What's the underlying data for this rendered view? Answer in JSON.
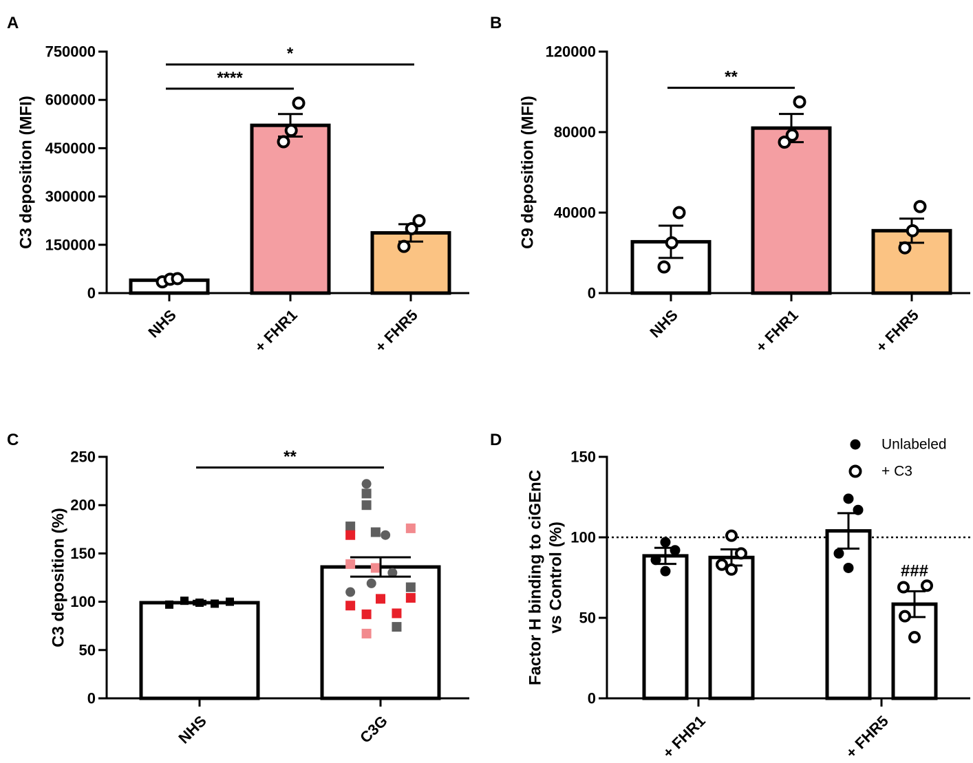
{
  "colors": {
    "axis": "#000000",
    "nhs_bar": "#ffffff",
    "fhr1_bar": "#f49ea2",
    "fhr5_bar": "#fbc383",
    "c3g_red": "#e8202a",
    "c3g_pink": "#f28a8e",
    "c3g_gray": "#5f5f5f"
  },
  "chart_data": [
    {
      "panel": "A",
      "type": "bar",
      "ylabel": "C3 deposition (MFI)",
      "ylim": [
        0,
        750000
      ],
      "yticks": [
        "0",
        "150000",
        "300000",
        "450000",
        "600000",
        "750000"
      ],
      "ytick_values": [
        0,
        150000,
        300000,
        450000,
        600000,
        750000
      ],
      "categories": [
        "NHS",
        "+ FHR1",
        "+ FHR5"
      ],
      "values": [
        40000,
        521000,
        187000
      ],
      "sem": [
        4000,
        35000,
        27000
      ],
      "points": [
        [
          35000,
          45000,
          43000
        ],
        [
          470000,
          505000,
          590000
        ],
        [
          145000,
          200000,
          225000
        ]
      ],
      "bar_colors": [
        "#ffffff",
        "#f49ea2",
        "#fbc383"
      ],
      "significance": [
        {
          "from": 0,
          "to": 1,
          "label": "****",
          "level": 635000
        },
        {
          "from": 0,
          "to": 2,
          "label": "*",
          "level": 710000
        }
      ]
    },
    {
      "panel": "B",
      "type": "bar",
      "ylabel": "C9 deposition (MFI)",
      "ylim": [
        0,
        120000
      ],
      "yticks": [
        "0",
        "40000",
        "80000",
        "120000"
      ],
      "ytick_values": [
        0,
        40000,
        80000,
        120000
      ],
      "categories": [
        "NHS",
        "+ FHR1",
        "+ FHR5"
      ],
      "values": [
        25500,
        82000,
        31000
      ],
      "sem": [
        8000,
        7000,
        6000
      ],
      "points": [
        [
          13000,
          25000,
          40000
        ],
        [
          75000,
          78500,
          95000
        ],
        [
          22500,
          31000,
          43000
        ]
      ],
      "bar_colors": [
        "#ffffff",
        "#f49ea2",
        "#fbc383"
      ],
      "significance": [
        {
          "from": 0,
          "to": 1,
          "label": "**",
          "level": 102000
        }
      ]
    },
    {
      "panel": "C",
      "type": "bar",
      "ylabel": "C3 deposition (%)",
      "ylim": [
        0,
        250
      ],
      "yticks": [
        "0",
        "50",
        "100",
        "150",
        "200",
        "250"
      ],
      "ytick_values": [
        0,
        50,
        100,
        150,
        200,
        250
      ],
      "categories": [
        "NHS",
        "C3G"
      ],
      "values": [
        99,
        136
      ],
      "sem": [
        2,
        10
      ],
      "nhs_points": [
        97,
        101,
        99,
        98,
        100
      ],
      "c3g_points": [
        {
          "y": 222,
          "shape": "circle",
          "color": "gray",
          "dx": -0.2
        },
        {
          "y": 212,
          "shape": "square",
          "color": "gray",
          "dx": -0.2
        },
        {
          "y": 200,
          "shape": "square",
          "color": "gray",
          "dx": -0.2
        },
        {
          "y": 178,
          "shape": "square",
          "color": "gray",
          "dx": -0.43
        },
        {
          "y": 172,
          "shape": "square",
          "color": "gray",
          "dx": -0.07
        },
        {
          "y": 169,
          "shape": "circle",
          "color": "gray",
          "dx": 0.07
        },
        {
          "y": 176,
          "shape": "square",
          "color": "pink",
          "dx": 0.43
        },
        {
          "y": 169,
          "shape": "square",
          "color": "red",
          "dx": -0.43
        },
        {
          "y": 139,
          "shape": "square",
          "color": "pink",
          "dx": -0.43
        },
        {
          "y": 135,
          "shape": "square",
          "color": "pink",
          "dx": -0.07
        },
        {
          "y": 130,
          "shape": "circle",
          "color": "gray",
          "dx": 0.17
        },
        {
          "y": 119,
          "shape": "circle",
          "color": "gray",
          "dx": -0.13
        },
        {
          "y": 115,
          "shape": "square",
          "color": "gray",
          "dx": 0.43
        },
        {
          "y": 110,
          "shape": "circle",
          "color": "gray",
          "dx": -0.43
        },
        {
          "y": 104,
          "shape": "square",
          "color": "red",
          "dx": 0.43
        },
        {
          "y": 103,
          "shape": "square",
          "color": "red",
          "dx": 0.0
        },
        {
          "y": 96,
          "shape": "square",
          "color": "red",
          "dx": -0.43
        },
        {
          "y": 87,
          "shape": "square",
          "color": "red",
          "dx": -0.2
        },
        {
          "y": 88,
          "shape": "square",
          "color": "red",
          "dx": 0.23
        },
        {
          "y": 74,
          "shape": "square",
          "color": "gray",
          "dx": 0.23
        },
        {
          "y": 67,
          "shape": "square",
          "color": "pink",
          "dx": -0.2
        }
      ],
      "bar_colors": [
        "#ffffff",
        "#ffffff"
      ],
      "significance": [
        {
          "from": 0,
          "to": 1,
          "label": "**",
          "level": 239
        }
      ]
    },
    {
      "panel": "D",
      "type": "bar",
      "ylabel_line1": "Factor H binding to ciGEnC",
      "ylabel_line2": "vs Control (%)",
      "ylim": [
        0,
        150
      ],
      "yticks": [
        "0",
        "50",
        "100",
        "150"
      ],
      "ytick_values": [
        0,
        50,
        100,
        150
      ],
      "categories": [
        "+ FHR1",
        "+ FHR5"
      ],
      "series": [
        {
          "name": "Unlabeled",
          "marker": "filled",
          "values": [
            88.5,
            104
          ],
          "sem": [
            5,
            11
          ],
          "points": [
            [
              79,
              86,
              92,
              97
            ],
            [
              81,
              90,
              117,
              124
            ]
          ]
        },
        {
          "name": "+ C3",
          "marker": "open",
          "values": [
            87.5,
            58.5
          ],
          "sem": [
            5,
            8
          ],
          "points": [
            [
              80,
              83,
              90,
              101
            ],
            [
              38,
              51,
              69,
              70
            ]
          ]
        }
      ],
      "reference_line": 100,
      "annotation": "###",
      "legend_position": "top-right"
    }
  ],
  "panel_labels": [
    "A",
    "B",
    "C",
    "D"
  ]
}
